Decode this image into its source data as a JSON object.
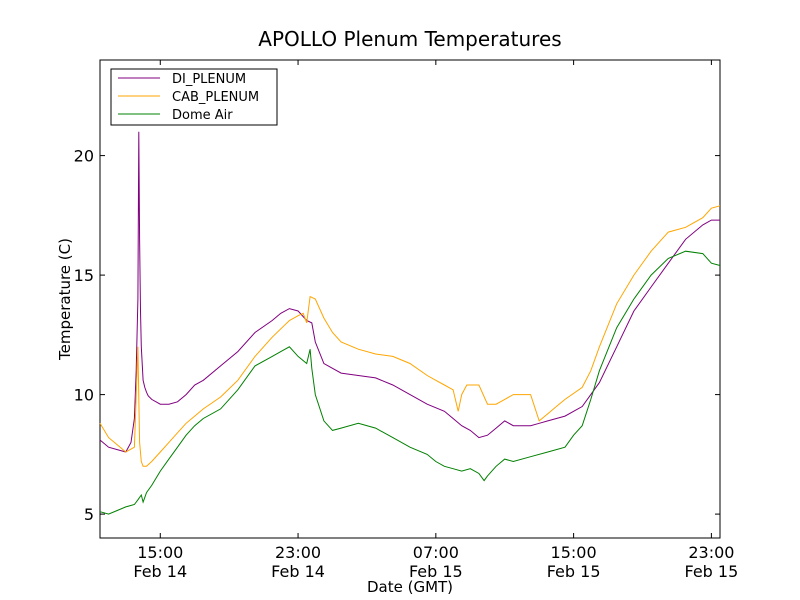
{
  "chart_data": {
    "type": "line",
    "title": "APOLLO Plenum Temperatures",
    "xlabel": "Date (GMT)",
    "ylabel": "Temperature (C)",
    "xlim": [
      0,
      36
    ],
    "ylim": [
      4,
      24
    ],
    "grid": false,
    "legend_position": "top-left",
    "x_ticks": [
      {
        "value": 3.5,
        "line1": "15:00",
        "line2": "Feb 14"
      },
      {
        "value": 11.5,
        "line1": "23:00",
        "line2": "Feb 14"
      },
      {
        "value": 19.5,
        "line1": "07:00",
        "line2": "Feb 15"
      },
      {
        "value": 27.5,
        "line1": "15:00",
        "line2": "Feb 15"
      },
      {
        "value": 35.5,
        "line1": "23:00",
        "line2": "Feb 15"
      }
    ],
    "y_ticks": [
      5,
      10,
      15,
      20
    ],
    "series": [
      {
        "name": "DI_PLENUM",
        "color": "#800080",
        "x": [
          0,
          0.5,
          1.0,
          1.5,
          1.8,
          2.0,
          2.1,
          2.2,
          2.25,
          2.3,
          2.35,
          2.4,
          2.5,
          2.6,
          2.7,
          2.8,
          3.0,
          3.5,
          4.0,
          4.5,
          5.0,
          5.5,
          6.0,
          7.0,
          8.0,
          9.0,
          10.0,
          10.5,
          11.0,
          11.5,
          12.0,
          12.3,
          12.5,
          13.0,
          14.0,
          15.0,
          16.0,
          17.0,
          18.0,
          19.0,
          20.0,
          20.5,
          21.0,
          21.5,
          22.0,
          22.5,
          23.0,
          23.5,
          24.0,
          25.0,
          25.5,
          26.0,
          26.5,
          27.0,
          28.0,
          28.5,
          29.0,
          30.0,
          31.0,
          32.0,
          33.0,
          34.0,
          35.0,
          35.5,
          36.0
        ],
        "y": [
          8.1,
          7.8,
          7.7,
          7.6,
          8.0,
          9.0,
          11.0,
          14.0,
          21.0,
          16.5,
          13.5,
          12.0,
          10.6,
          10.3,
          10.1,
          9.95,
          9.8,
          9.6,
          9.6,
          9.7,
          10.0,
          10.4,
          10.6,
          11.2,
          11.8,
          12.6,
          13.1,
          13.4,
          13.6,
          13.5,
          13.1,
          13.0,
          12.2,
          11.3,
          10.9,
          10.8,
          10.7,
          10.4,
          10.0,
          9.6,
          9.3,
          9.0,
          8.7,
          8.5,
          8.2,
          8.3,
          8.6,
          8.9,
          8.7,
          8.7,
          8.8,
          8.9,
          9.0,
          9.1,
          9.5,
          10.0,
          10.5,
          12.0,
          13.5,
          14.5,
          15.5,
          16.5,
          17.1,
          17.3,
          17.3
        ]
      },
      {
        "name": "CAB_PLENUM",
        "color": "#FFA500",
        "x": [
          0,
          0.5,
          1.0,
          1.5,
          2.0,
          2.2,
          2.3,
          2.4,
          2.5,
          2.7,
          3.0,
          3.5,
          4.0,
          4.5,
          5.0,
          5.5,
          6.0,
          7.0,
          8.0,
          9.0,
          10.0,
          11.0,
          11.5,
          11.8,
          12.0,
          12.2,
          12.5,
          13.0,
          13.5,
          14.0,
          15.0,
          16.0,
          17.0,
          18.0,
          19.0,
          19.5,
          20.0,
          20.5,
          20.8,
          21.0,
          21.3,
          22.0,
          22.5,
          23.0,
          23.5,
          24.0,
          25.0,
          25.5,
          26.0,
          26.5,
          27.0,
          28.0,
          28.5,
          29.0,
          30.0,
          31.0,
          32.0,
          33.0,
          34.0,
          35.0,
          35.5,
          36.0
        ],
        "y": [
          8.8,
          8.2,
          7.9,
          7.6,
          7.8,
          12.0,
          8.0,
          7.2,
          7.0,
          7.0,
          7.2,
          7.6,
          8.0,
          8.4,
          8.8,
          9.1,
          9.4,
          9.9,
          10.6,
          11.6,
          12.4,
          13.1,
          13.3,
          13.4,
          13.0,
          14.1,
          14.0,
          13.2,
          12.6,
          12.2,
          11.9,
          11.7,
          11.6,
          11.3,
          10.8,
          10.6,
          10.4,
          10.2,
          9.3,
          10.0,
          10.4,
          10.4,
          9.6,
          9.6,
          9.8,
          10.0,
          10.0,
          8.9,
          9.2,
          9.5,
          9.8,
          10.3,
          11.0,
          12.0,
          13.8,
          15.0,
          16.0,
          16.8,
          17.0,
          17.4,
          17.8,
          17.9
        ]
      },
      {
        "name": "Dome Air",
        "color": "#008000",
        "x": [
          0,
          0.5,
          1.0,
          1.5,
          2.0,
          2.2,
          2.4,
          2.5,
          2.6,
          2.7,
          3.0,
          3.5,
          4.0,
          4.5,
          5.0,
          5.5,
          6.0,
          7.0,
          8.0,
          9.0,
          10.0,
          10.5,
          11.0,
          11.5,
          12.0,
          12.2,
          12.3,
          12.5,
          13.0,
          13.5,
          14.0,
          15.0,
          16.0,
          17.0,
          18.0,
          19.0,
          19.5,
          20.0,
          20.5,
          21.0,
          21.5,
          22.0,
          22.3,
          22.5,
          23.0,
          23.5,
          24.0,
          25.0,
          26.0,
          27.0,
          27.5,
          28.0,
          28.5,
          29.0,
          30.0,
          31.0,
          32.0,
          33.0,
          34.0,
          35.0,
          35.5,
          36.0
        ],
        "y": [
          5.1,
          5.0,
          5.15,
          5.3,
          5.4,
          5.6,
          5.8,
          5.5,
          5.7,
          5.9,
          6.2,
          6.8,
          7.3,
          7.8,
          8.3,
          8.7,
          9.0,
          9.4,
          10.2,
          11.2,
          11.6,
          11.8,
          12.0,
          11.6,
          11.3,
          11.9,
          11.1,
          10.0,
          8.9,
          8.5,
          8.6,
          8.8,
          8.6,
          8.2,
          7.8,
          7.5,
          7.2,
          7.0,
          6.9,
          6.8,
          6.9,
          6.7,
          6.4,
          6.6,
          7.0,
          7.3,
          7.2,
          7.4,
          7.6,
          7.8,
          8.3,
          8.7,
          9.8,
          11.0,
          12.8,
          14.0,
          15.0,
          15.7,
          16.0,
          15.9,
          15.5,
          15.4
        ]
      }
    ]
  }
}
